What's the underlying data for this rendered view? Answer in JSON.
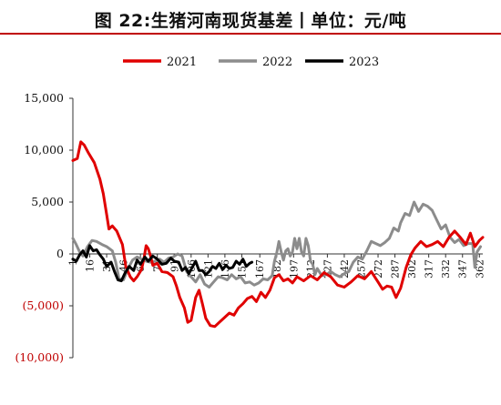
{
  "title": "图 22:生猪河南现货基差丨单位：元/吨",
  "colors": {
    "positive_tick": "#111111",
    "negative_tick": "#c00000",
    "title_rule": "#c00000"
  },
  "chart_data": {
    "type": "line",
    "title": "图 22:生猪河南现货基差丨单位：元/吨",
    "xlabel": "",
    "ylabel": "",
    "xlim": [
      1,
      365
    ],
    "ylim": [
      -10000,
      15000
    ],
    "y_ticks": [
      15000,
      10000,
      5000,
      0,
      -5000,
      -10000
    ],
    "y_tick_labels": [
      "15,000",
      "10,000",
      "5,000",
      "0",
      "(5,000)",
      "(10,000)"
    ],
    "x_tick_labels": [
      "1",
      "16",
      "31",
      "46",
      "61",
      "76",
      "91",
      "106",
      "121",
      "136",
      "151",
      "167",
      "182",
      "197",
      "212",
      "227",
      "242",
      "257",
      "272",
      "287",
      "302",
      "317",
      "332",
      "347",
      "362"
    ],
    "legend_position": "top-center",
    "grid": false,
    "series": [
      {
        "name": "2021",
        "color": "#e00000",
        "points": [
          [
            1,
            9000
          ],
          [
            5,
            9200
          ],
          [
            8,
            10800
          ],
          [
            11,
            10500
          ],
          [
            15,
            9700
          ],
          [
            20,
            8800
          ],
          [
            25,
            7200
          ],
          [
            28,
            5800
          ],
          [
            31,
            3800
          ],
          [
            33,
            2400
          ],
          [
            36,
            2700
          ],
          [
            40,
            2200
          ],
          [
            45,
            900
          ],
          [
            48,
            -1200
          ],
          [
            52,
            -2200
          ],
          [
            55,
            -2600
          ],
          [
            58,
            -2200
          ],
          [
            62,
            -1500
          ],
          [
            64,
            -500
          ],
          [
            66,
            800
          ],
          [
            68,
            500
          ],
          [
            70,
            -200
          ],
          [
            72,
            -1100
          ],
          [
            76,
            -900
          ],
          [
            80,
            -1700
          ],
          [
            85,
            -1800
          ],
          [
            90,
            -2200
          ],
          [
            93,
            -3100
          ],
          [
            96,
            -4200
          ],
          [
            100,
            -5200
          ],
          [
            103,
            -6600
          ],
          [
            106,
            -6400
          ],
          [
            110,
            -4200
          ],
          [
            113,
            -3500
          ],
          [
            116,
            -4800
          ],
          [
            119,
            -6200
          ],
          [
            123,
            -6900
          ],
          [
            127,
            -7000
          ],
          [
            131,
            -6600
          ],
          [
            136,
            -6100
          ],
          [
            140,
            -5700
          ],
          [
            144,
            -5900
          ],
          [
            148,
            -5200
          ],
          [
            152,
            -4800
          ],
          [
            156,
            -4300
          ],
          [
            160,
            -4100
          ],
          [
            164,
            -4600
          ],
          [
            168,
            -3700
          ],
          [
            172,
            -4200
          ],
          [
            176,
            -3500
          ],
          [
            180,
            -2300
          ],
          [
            184,
            -2000
          ],
          [
            188,
            -2600
          ],
          [
            192,
            -2400
          ],
          [
            196,
            -2800
          ],
          [
            200,
            -2200
          ],
          [
            206,
            -2600
          ],
          [
            212,
            -2100
          ],
          [
            218,
            -2500
          ],
          [
            224,
            -1800
          ],
          [
            230,
            -2200
          ],
          [
            236,
            -3000
          ],
          [
            242,
            -3200
          ],
          [
            248,
            -2700
          ],
          [
            254,
            -2100
          ],
          [
            260,
            -2400
          ],
          [
            266,
            -1700
          ],
          [
            272,
            -2700
          ],
          [
            276,
            -3400
          ],
          [
            280,
            -3100
          ],
          [
            284,
            -3200
          ],
          [
            288,
            -4200
          ],
          [
            292,
            -3300
          ],
          [
            297,
            -1300
          ],
          [
            301,
            -100
          ],
          [
            305,
            600
          ],
          [
            310,
            1200
          ],
          [
            315,
            700
          ],
          [
            320,
            900
          ],
          [
            325,
            1200
          ],
          [
            330,
            700
          ],
          [
            335,
            1600
          ],
          [
            340,
            2200
          ],
          [
            345,
            1600
          ],
          [
            350,
            900
          ],
          [
            354,
            2000
          ],
          [
            358,
            700
          ],
          [
            362,
            1300
          ],
          [
            365,
            1600
          ]
        ]
      },
      {
        "name": "2022",
        "color": "#8c8c8c",
        "points": [
          [
            1,
            1500
          ],
          [
            4,
            900
          ],
          [
            7,
            200
          ],
          [
            10,
            -200
          ],
          [
            14,
            700
          ],
          [
            18,
            1300
          ],
          [
            22,
            1200
          ],
          [
            27,
            900
          ],
          [
            31,
            700
          ],
          [
            36,
            300
          ],
          [
            39,
            -800
          ],
          [
            42,
            -2400
          ],
          [
            46,
            -2500
          ],
          [
            50,
            -1400
          ],
          [
            54,
            -600
          ],
          [
            58,
            -300
          ],
          [
            62,
            -500
          ],
          [
            66,
            -700
          ],
          [
            70,
            -800
          ],
          [
            74,
            -700
          ],
          [
            78,
            -500
          ],
          [
            82,
            -800
          ],
          [
            86,
            -400
          ],
          [
            90,
            -300
          ],
          [
            94,
            0
          ],
          [
            98,
            -200
          ],
          [
            102,
            -1700
          ],
          [
            106,
            -2200
          ],
          [
            110,
            -2700
          ],
          [
            114,
            -2000
          ],
          [
            118,
            -2900
          ],
          [
            122,
            -3200
          ],
          [
            126,
            -2700
          ],
          [
            130,
            -2200
          ],
          [
            134,
            -2300
          ],
          [
            138,
            -2500
          ],
          [
            142,
            -2000
          ],
          [
            146,
            -2400
          ],
          [
            150,
            -2200
          ],
          [
            154,
            -2800
          ],
          [
            158,
            -2700
          ],
          [
            162,
            -3000
          ],
          [
            166,
            -2800
          ],
          [
            170,
            -2400
          ],
          [
            174,
            -2500
          ],
          [
            178,
            -2100
          ],
          [
            180,
            -700
          ],
          [
            182,
            100
          ],
          [
            184,
            1200
          ],
          [
            186,
            200
          ],
          [
            188,
            -600
          ],
          [
            190,
            300
          ],
          [
            192,
            500
          ],
          [
            194,
            -200
          ],
          [
            196,
            200
          ],
          [
            198,
            1500
          ],
          [
            200,
            500
          ],
          [
            202,
            1500
          ],
          [
            204,
            200
          ],
          [
            206,
            -200
          ],
          [
            208,
            1500
          ],
          [
            210,
            800
          ],
          [
            212,
            -700
          ],
          [
            214,
            -1000
          ],
          [
            216,
            -2000
          ],
          [
            218,
            -1400
          ],
          [
            222,
            -2100
          ],
          [
            226,
            -2000
          ],
          [
            230,
            -1700
          ],
          [
            234,
            -2000
          ],
          [
            238,
            -2200
          ],
          [
            242,
            -1900
          ],
          [
            246,
            -1700
          ],
          [
            250,
            -800
          ],
          [
            254,
            -300
          ],
          [
            258,
            -500
          ],
          [
            262,
            300
          ],
          [
            266,
            1200
          ],
          [
            270,
            1000
          ],
          [
            274,
            800
          ],
          [
            278,
            1100
          ],
          [
            282,
            1500
          ],
          [
            286,
            2500
          ],
          [
            290,
            2200
          ],
          [
            292,
            3000
          ],
          [
            296,
            3900
          ],
          [
            300,
            3700
          ],
          [
            304,
            5000
          ],
          [
            308,
            4100
          ],
          [
            312,
            4800
          ],
          [
            316,
            4600
          ],
          [
            320,
            4200
          ],
          [
            324,
            3300
          ],
          [
            328,
            2400
          ],
          [
            332,
            2800
          ],
          [
            336,
            1600
          ],
          [
            340,
            1100
          ],
          [
            344,
            1400
          ],
          [
            348,
            800
          ],
          [
            352,
            1000
          ],
          [
            356,
            1000
          ],
          [
            358,
            -1300
          ],
          [
            360,
            200
          ],
          [
            363,
            700
          ]
        ]
      },
      {
        "name": "2023",
        "color": "#000000",
        "points": [
          [
            1,
            -500
          ],
          [
            4,
            -700
          ],
          [
            7,
            -100
          ],
          [
            10,
            300
          ],
          [
            13,
            -300
          ],
          [
            16,
            800
          ],
          [
            19,
            300
          ],
          [
            22,
            400
          ],
          [
            25,
            -100
          ],
          [
            28,
            -500
          ],
          [
            31,
            -1200
          ],
          [
            35,
            -800
          ],
          [
            38,
            -1700
          ],
          [
            41,
            -2500
          ],
          [
            44,
            -2600
          ],
          [
            47,
            -1900
          ],
          [
            51,
            -1200
          ],
          [
            55,
            -1600
          ],
          [
            58,
            -600
          ],
          [
            61,
            -1000
          ],
          [
            65,
            -300
          ],
          [
            68,
            -700
          ],
          [
            72,
            -200
          ],
          [
            76,
            -500
          ],
          [
            80,
            -1000
          ],
          [
            84,
            -900
          ],
          [
            88,
            -400
          ],
          [
            91,
            -700
          ],
          [
            95,
            -800
          ],
          [
            98,
            -1600
          ],
          [
            101,
            -1300
          ],
          [
            104,
            -1900
          ],
          [
            107,
            -1300
          ],
          [
            110,
            -700
          ],
          [
            113,
            -1600
          ],
          [
            116,
            -1600
          ],
          [
            119,
            -2000
          ],
          [
            122,
            -1700
          ],
          [
            125,
            -1200
          ],
          [
            128,
            -1400
          ],
          [
            131,
            -900
          ],
          [
            134,
            -1500
          ],
          [
            137,
            -1100
          ],
          [
            140,
            -1400
          ],
          [
            143,
            -1300
          ],
          [
            146,
            -700
          ],
          [
            149,
            -1000
          ],
          [
            152,
            -500
          ],
          [
            155,
            -1200
          ],
          [
            158,
            -900
          ],
          [
            160,
            -800
          ]
        ]
      }
    ]
  }
}
